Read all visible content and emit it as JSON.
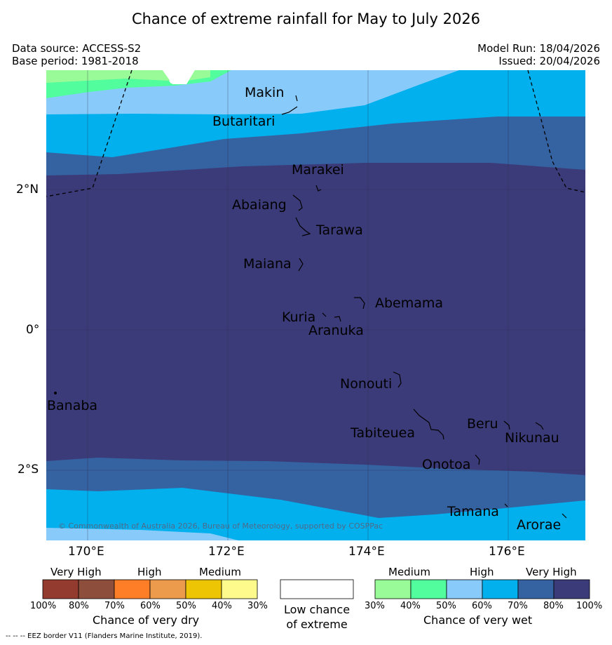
{
  "title": "Chance of extreme rainfall for May to July 2026",
  "info": {
    "data_source": "Data source: ACCESS-S2",
    "base_period": "Base period: 1981-2018",
    "model_run": "Model Run: 18/04/2026",
    "issued": "Issued: 20/04/2026"
  },
  "axes": {
    "lat_labels": [
      "2°N",
      "0°",
      "2°S"
    ],
    "lon_labels": [
      "170°E",
      "172°E",
      "174°E",
      "176°E"
    ]
  },
  "places": [
    "Makin",
    "Butaritari",
    "Marakei",
    "Abaiang",
    "Tarawa",
    "Maiana",
    "Abemama",
    "Kuria",
    "Aranuka",
    "Nonouti",
    "Banaba",
    "Tabiteuea",
    "Beru",
    "Nikunau",
    "Onotoa",
    "Tamana",
    "Arorae"
  ],
  "copyright": "© Commonwealth of Australia 2026, Bureau of Meteorology, supported by COSPPac",
  "legend": {
    "dry": {
      "categories": [
        "Very High",
        "High",
        "Medium"
      ],
      "ticks": [
        "100%",
        "80%",
        "70%",
        "60%",
        "50%",
        "40%",
        "30%"
      ],
      "colors": [
        "#943b30",
        "#8e4e3c",
        "#fe7e27",
        "#eb9b4b",
        "#eec505",
        "#fefb8c"
      ],
      "label": "Chance of very dry"
    },
    "low": {
      "line1": "Low chance",
      "line2": "of extreme"
    },
    "wet": {
      "categories": [
        "Medium",
        "High",
        "Very High"
      ],
      "ticks": [
        "30%",
        "40%",
        "50%",
        "60%",
        "70%",
        "80%",
        "100%"
      ],
      "colors": [
        "#99fb98",
        "#51fd9d",
        "#88cbfb",
        "#02b0ed",
        "#3562a1",
        "#3c3b79"
      ],
      "label": "Chance of very wet"
    }
  },
  "eez_note": "--  --  -- EEZ border V11 (Flanders Marine Institute, 2019)."
}
